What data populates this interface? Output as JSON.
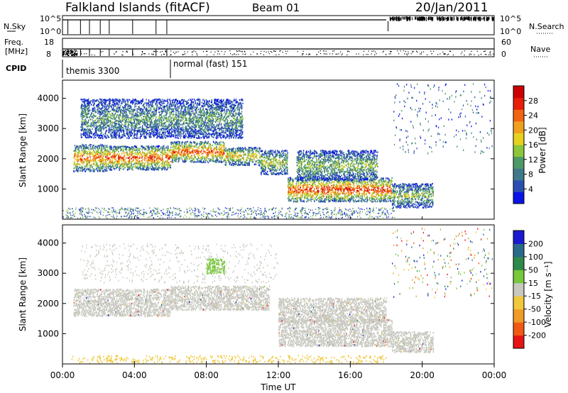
{
  "header": {
    "station": "Falkland Islands (fitACF)",
    "beam": "Beam 01",
    "date": "20/Jan/2011"
  },
  "top_panels": {
    "nsky_label": "N.Sky",
    "nsky_ticks": [
      "10^5",
      "10^0"
    ],
    "nsearch_label": "N.Search",
    "nsearch_ticks": [
      "10^5",
      "10^0"
    ],
    "freq_label_1": "Freq.",
    "freq_label_2": "[MHz]",
    "freq_ticks": [
      "18",
      "8"
    ],
    "nave_label": "Nave",
    "nave_ticks": [
      "60",
      "0"
    ],
    "cpid_label": "CPID",
    "cpid_segments": [
      "themis 3300",
      "normal (fast) 151"
    ]
  },
  "chart_data": [
    {
      "type": "heatmap",
      "panel": "power",
      "xlabel": "Time UT",
      "ylabel": "Slant Range [km]",
      "x_ticks": [
        "00:00",
        "04:00",
        "08:00",
        "12:00",
        "16:00",
        "20:00",
        "00:00"
      ],
      "y_ticks": [
        "1000",
        "2000",
        "3000",
        "4000"
      ],
      "ylim": [
        0,
        4600
      ],
      "colorbar_label": "Power [dB]",
      "colorbar_ticks": [
        "4",
        "8",
        "12",
        "16",
        "20",
        "24",
        "28"
      ],
      "colorbar_colors": [
        "#0a14e6",
        "#2a4fb0",
        "#3f7a8c",
        "#4e9a66",
        "#8cc63c",
        "#e6d21e",
        "#f0a01e",
        "#f06414",
        "#e61e0a",
        "#cc0000"
      ],
      "bands": [
        {
          "x": [
            0.6,
            2.5
          ],
          "y": [
            1600,
            2500
          ],
          "intensity": 0.75
        },
        {
          "x": [
            2.5,
            6.0
          ],
          "y": [
            1650,
            2450
          ],
          "intensity": 0.8
        },
        {
          "x": [
            6.0,
            9.0
          ],
          "y": [
            1900,
            2600
          ],
          "intensity": 0.8
        },
        {
          "x": [
            9.0,
            11.0
          ],
          "y": [
            1800,
            2400
          ],
          "intensity": 0.6
        },
        {
          "x": [
            11.0,
            12.5
          ],
          "y": [
            1500,
            2300
          ],
          "intensity": 0.5
        },
        {
          "x": [
            12.5,
            18.3
          ],
          "y": [
            600,
            1400
          ],
          "intensity": 0.85
        },
        {
          "x": [
            13.0,
            17.5
          ],
          "y": [
            1300,
            2300
          ],
          "intensity": 0.45
        },
        {
          "x": [
            18.3,
            20.6
          ],
          "y": [
            400,
            1200
          ],
          "intensity": 0.45
        },
        {
          "x": [
            1.0,
            10.0
          ],
          "y": [
            2700,
            4000
          ],
          "intensity": 0.35
        }
      ]
    },
    {
      "type": "heatmap",
      "panel": "velocity",
      "xlabel": "Time UT",
      "ylabel": "Slant Range [km]",
      "x_ticks": [
        "00:00",
        "04:00",
        "08:00",
        "12:00",
        "16:00",
        "20:00",
        "00:00"
      ],
      "y_ticks": [
        "1000",
        "2000",
        "3000",
        "4000"
      ],
      "ylim": [
        0,
        4600
      ],
      "colorbar_label": "Velocity [m s⁻¹]",
      "colorbar_ticks": [
        "200",
        "100",
        "50",
        "15",
        "-15",
        "-50",
        "-100",
        "-200"
      ],
      "colorbar_colors": [
        "#1a1ad0",
        "#2a6a8a",
        "#2e8a4a",
        "#78c83c",
        "#c8c8c0",
        "#f0c83c",
        "#f09a28",
        "#f05a14",
        "#e61414"
      ],
      "bands": [
        {
          "x": [
            0.6,
            6.0
          ],
          "y": [
            1600,
            2500
          ],
          "v": "0"
        },
        {
          "x": [
            6.0,
            11.5
          ],
          "y": [
            1800,
            2600
          ],
          "v": "0"
        },
        {
          "x": [
            12.0,
            18.3
          ],
          "y": [
            600,
            1500
          ],
          "v": "0"
        },
        {
          "x": [
            12.0,
            18.0
          ],
          "y": [
            1400,
            2200
          ],
          "v": "0"
        },
        {
          "x": [
            18.3,
            20.6
          ],
          "y": [
            400,
            1100
          ],
          "v": "0"
        },
        {
          "x": [
            8.0,
            9.0
          ],
          "y": [
            3000,
            3500
          ],
          "v": "+50"
        },
        {
          "x": [
            0.5,
            18.0
          ],
          "y": [
            50,
            300
          ],
          "v": "-30"
        }
      ]
    }
  ]
}
